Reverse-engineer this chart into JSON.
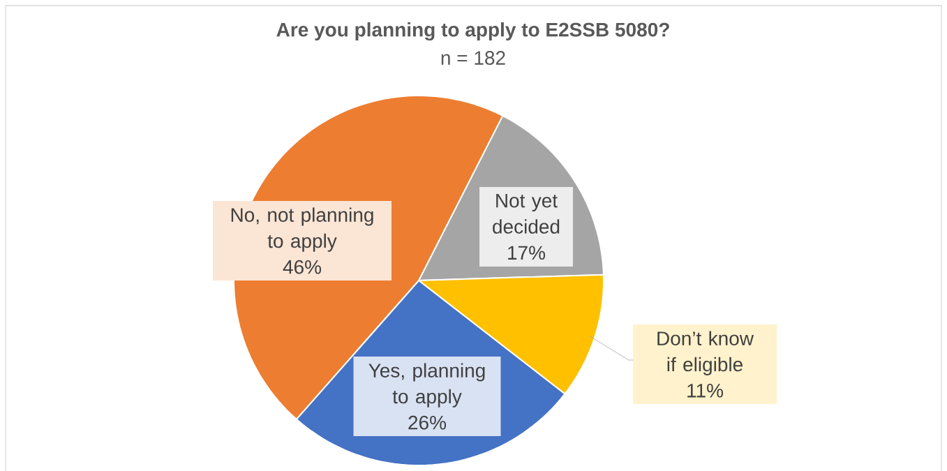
{
  "chart_data": {
    "type": "pie",
    "title": "Are you planning to apply to E2SSB 5080?",
    "subtitle": "n = 182",
    "categories": [
      "Not yet decided",
      "Don’t know if eligible",
      "Yes, planning to apply",
      "No, not planning to apply"
    ],
    "values": [
      17,
      11,
      26,
      46
    ],
    "value_labels": [
      "17%",
      "11%",
      "26%",
      "46%"
    ],
    "colors": [
      "#a5a5a5",
      "#ffc000",
      "#4472c4",
      "#ed7d31"
    ]
  }
}
